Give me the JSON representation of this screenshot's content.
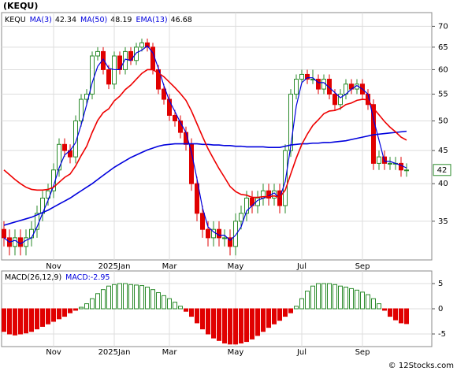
{
  "chart_data": [
    {
      "type": "candlestick",
      "title": "(KEQU)",
      "symbol": "KEQU",
      "categories": [
        null,
        null,
        null,
        null,
        null,
        null,
        null,
        null,
        null,
        "Nov",
        null,
        null,
        null,
        null,
        null,
        null,
        null,
        null,
        null,
        null,
        "2025Jan",
        null,
        null,
        null,
        null,
        null,
        null,
        null,
        null,
        null,
        "Mar",
        null,
        null,
        null,
        null,
        null,
        null,
        null,
        null,
        null,
        null,
        null,
        "May",
        null,
        null,
        null,
        null,
        null,
        null,
        null,
        null,
        null,
        null,
        null,
        "Jul",
        null,
        null,
        null,
        null,
        null,
        null,
        null,
        null,
        null,
        null,
        "Sep",
        null,
        null,
        null,
        null,
        null,
        null,
        null,
        null
      ],
      "open": [
        34,
        33,
        32,
        33,
        32,
        33,
        34,
        36,
        38,
        39,
        42,
        46,
        45,
        44,
        50,
        54,
        55,
        63,
        64,
        60,
        57,
        63,
        60,
        64,
        62,
        65,
        66,
        65,
        60,
        56,
        54,
        51,
        50,
        48,
        46,
        40,
        36,
        34,
        33,
        34,
        33,
        33,
        32,
        35,
        36,
        38,
        37,
        38,
        39,
        38,
        39,
        37,
        45,
        55,
        58,
        59,
        58,
        58,
        56,
        58,
        55,
        53,
        55,
        57,
        56,
        57,
        55,
        53,
        43,
        44,
        43,
        43,
        43,
        42
      ],
      "high": [
        35,
        34,
        34,
        34,
        34,
        35,
        37,
        39,
        40,
        43,
        47,
        47,
        46,
        51,
        55,
        56,
        64,
        65,
        65,
        61,
        64,
        64,
        65,
        65,
        66,
        67,
        67,
        66,
        61,
        57,
        55,
        52,
        51,
        49,
        47,
        41,
        37,
        35,
        35,
        35,
        34,
        34,
        36,
        37,
        39,
        39,
        39,
        40,
        40,
        40,
        40,
        46,
        56,
        59,
        60,
        60,
        60,
        59,
        59,
        59,
        56,
        56,
        58,
        58,
        58,
        58,
        56,
        54,
        45,
        45,
        44,
        44,
        44,
        43
      ],
      "low": [
        32,
        31,
        31,
        31,
        31,
        32,
        33,
        35,
        37,
        38,
        41,
        44,
        43,
        43,
        49,
        53,
        54,
        62,
        59,
        56,
        56,
        59,
        59,
        61,
        61,
        64,
        64,
        59,
        55,
        53,
        50,
        49,
        47,
        45,
        39,
        35,
        33,
        32,
        32,
        32,
        32,
        31,
        31,
        34,
        35,
        36,
        36,
        37,
        37,
        37,
        36,
        36,
        44,
        54,
        57,
        57,
        57,
        55,
        55,
        54,
        52,
        52,
        54,
        55,
        55,
        54,
        52,
        42,
        42,
        42,
        42,
        42,
        41,
        41
      ],
      "close": [
        33,
        32,
        33,
        32,
        33,
        34,
        36,
        38,
        39,
        42,
        46,
        45,
        44,
        50,
        54,
        55,
        63,
        64,
        60,
        57,
        63,
        60,
        64,
        62,
        65,
        66,
        65,
        60,
        56,
        54,
        51,
        50,
        48,
        46,
        40,
        36,
        34,
        33,
        34,
        33,
        33,
        32,
        35,
        36,
        38,
        37,
        38,
        39,
        38,
        39,
        37,
        45,
        55,
        58,
        59,
        58,
        58,
        56,
        58,
        55,
        53,
        55,
        57,
        56,
        57,
        55,
        53,
        43,
        44,
        43,
        43,
        43,
        42,
        42
      ],
      "series": [
        {
          "name": "MA(3)",
          "color": "#0000dd",
          "last": 42.34,
          "values": [
            33,
            32.5,
            32.7,
            32.3,
            32.7,
            33,
            34.3,
            36,
            37.7,
            39.7,
            42.3,
            44.3,
            45,
            46.3,
            49.3,
            53,
            57.3,
            60.7,
            62.3,
            60.3,
            60,
            60,
            62.3,
            62,
            63.7,
            64.3,
            65.3,
            63.7,
            60.3,
            56.7,
            53.7,
            51.7,
            49.7,
            48,
            44.7,
            40.7,
            36.7,
            34.3,
            33.7,
            33.3,
            33.3,
            32.7,
            33.3,
            34.3,
            36.3,
            37,
            37.7,
            38,
            38.3,
            38.7,
            38,
            40.3,
            45.7,
            52.7,
            57.3,
            58.3,
            58.3,
            57.3,
            57.3,
            56.3,
            55.3,
            54.3,
            55,
            56,
            56.7,
            56,
            55,
            50.3,
            46.7,
            43.3,
            43.3,
            43,
            42.7,
            42.3
          ]
        },
        {
          "name": "MA(50)",
          "color": "#0000dd",
          "last": 48.19,
          "values": [
            34.5,
            34.7,
            34.9,
            35.1,
            35.3,
            35.5,
            35.8,
            36.1,
            36.4,
            36.8,
            37.2,
            37.6,
            38,
            38.5,
            39,
            39.5,
            40,
            40.6,
            41.2,
            41.8,
            42.4,
            42.9,
            43.4,
            43.9,
            44.3,
            44.7,
            45.1,
            45.4,
            45.7,
            45.9,
            46,
            46.1,
            46.1,
            46.1,
            46.1,
            46.1,
            46,
            46,
            45.9,
            45.9,
            45.8,
            45.8,
            45.7,
            45.7,
            45.6,
            45.6,
            45.6,
            45.6,
            45.5,
            45.5,
            45.5,
            45.7,
            45.9,
            46,
            46.1,
            46.1,
            46.2,
            46.2,
            46.3,
            46.3,
            46.4,
            46.5,
            46.6,
            46.8,
            47,
            47.2,
            47.4,
            47.6,
            47.7,
            47.8,
            47.9,
            48,
            48.1,
            48.2
          ]
        },
        {
          "name": "EMA(13)",
          "color": "#ee0000",
          "last": 46.68,
          "values": [
            42,
            41.3,
            40.6,
            40,
            39.5,
            39.2,
            39.1,
            39.1,
            39.2,
            39.5,
            40.2,
            40.9,
            41.4,
            42.6,
            44.2,
            45.7,
            48,
            50.1,
            51.5,
            52.2,
            53.7,
            54.6,
            55.9,
            56.8,
            58,
            59.2,
            60,
            60,
            59.3,
            58.5,
            57.4,
            56.3,
            55.1,
            53.8,
            51.8,
            49.5,
            47.3,
            45.3,
            43.7,
            42.2,
            40.9,
            39.6,
            38.9,
            38.5,
            38.4,
            38.1,
            38.1,
            38.2,
            38.2,
            38.3,
            38.1,
            39.1,
            41.4,
            43.8,
            46,
            47.7,
            49.2,
            50.2,
            51.3,
            51.8,
            51.9,
            52.3,
            53,
            53.3,
            53.8,
            54,
            53.9,
            52.3,
            51.1,
            49.9,
            48.9,
            48.1,
            47.2,
            46.7
          ]
        }
      ],
      "up_color": "#2a8a2a",
      "down_color": "#e00000",
      "ylim": [
        30.5,
        73.5
      ],
      "yticks": [
        35,
        40,
        45,
        50,
        55,
        60,
        65,
        70
      ],
      "log_scale": true,
      "grid": true,
      "last_price": 42
    },
    {
      "type": "bar",
      "title": "MACD(26,12,9)",
      "macd_label": "MACD:",
      "macd_value": -2.95,
      "values": [
        -4.5,
        -5,
        -5.2,
        -5,
        -4.8,
        -4.5,
        -4,
        -3.5,
        -3,
        -2.5,
        -2,
        -1.5,
        -0.8,
        -0.3,
        0.3,
        1,
        2,
        3,
        3.8,
        4.5,
        4.8,
        5,
        5,
        4.8,
        4.7,
        4.6,
        4.3,
        3.8,
        3.2,
        2.6,
        2,
        1.3,
        0.5,
        -0.5,
        -1.5,
        -2.8,
        -4,
        -5,
        -5.8,
        -6.3,
        -6.8,
        -7,
        -7,
        -6.8,
        -6.5,
        -6,
        -5.3,
        -4.5,
        -3.7,
        -3,
        -2.3,
        -1.5,
        -0.8,
        0.5,
        2,
        3.5,
        4.5,
        5,
        5,
        5,
        4.8,
        4.5,
        4.3,
        4,
        3.7,
        3.3,
        2.8,
        2,
        1,
        -0.3,
        -1.5,
        -2.2,
        -2.8,
        -2.95
      ],
      "positive_color": "#2a8a2a",
      "negative_color": "#e00000",
      "ylim": [
        -7.5,
        7.5
      ],
      "yticks": [
        -5,
        0,
        5
      ],
      "grid": true
    }
  ],
  "watermark": "© 12Stocks.com"
}
